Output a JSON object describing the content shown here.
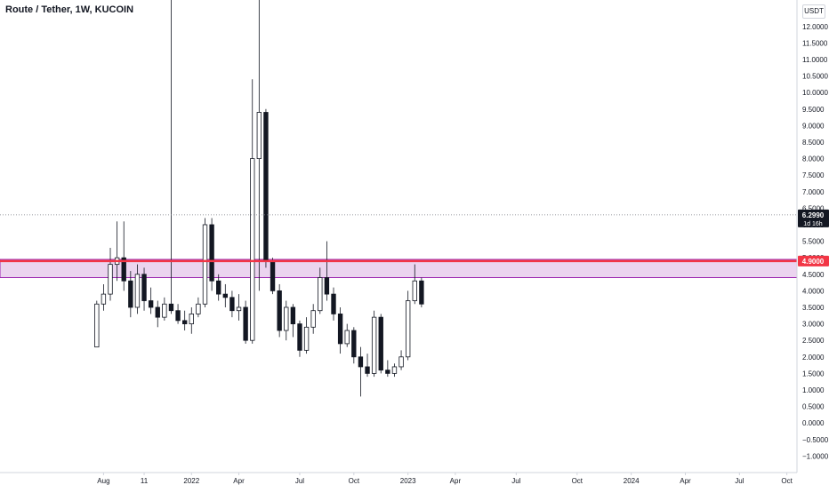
{
  "chart_data": {
    "type": "candlestick",
    "title": "Route / Tether, 1W, KUCOIN",
    "currency": "USDT",
    "yticks": [
      -1,
      -0.5,
      0,
      0.5,
      1,
      1.5,
      2,
      2.5,
      3,
      3.5,
      4,
      4.5,
      5,
      5.5,
      6,
      6.5,
      7,
      7.5,
      8,
      8.5,
      9,
      9.5,
      10,
      10.5,
      11,
      11.5,
      12
    ],
    "ytick_labels": [
      "−1.0000",
      "−0.5000",
      "0.0000",
      "0.5000",
      "1.0000",
      "1.5000",
      "2.0000",
      "2.5000",
      "3.0000",
      "3.5000",
      "4.0000",
      "4.5000",
      "5.0000",
      "5.5000",
      "6.0000",
      "6.5000",
      "7.0000",
      "7.5000",
      "8.0000",
      "8.5000",
      "9.0000",
      "9.5000",
      "10.0000",
      "10.5000",
      "11.0000",
      "11.5000",
      "12.0000"
    ],
    "ylim": [
      -1.5,
      12.8
    ],
    "xtick_labels": [
      {
        "label": "Aug",
        "index": 1
      },
      {
        "label": "11",
        "index": 7
      },
      {
        "label": "2022",
        "index": 14
      },
      {
        "label": "Apr",
        "index": 21
      },
      {
        "label": "Jul",
        "index": 30
      },
      {
        "label": "Oct",
        "index": 38
      },
      {
        "label": "2023",
        "index": 46
      },
      {
        "label": "Apr",
        "index": 53
      },
      {
        "label": "Jul",
        "index": 62
      },
      {
        "label": "Oct",
        "index": 71
      },
      {
        "label": "2024",
        "index": 79
      },
      {
        "label": "Apr",
        "index": 87
      },
      {
        "label": "Jul",
        "index": 95
      },
      {
        "label": "Oct",
        "index": 102
      }
    ],
    "x_slots": 104,
    "candles": [
      {
        "o": 2.3,
        "h": 3.7,
        "l": 2.3,
        "c": 3.6
      },
      {
        "o": 3.6,
        "h": 4.2,
        "l": 3.4,
        "c": 3.9
      },
      {
        "o": 3.9,
        "h": 5.3,
        "l": 3.7,
        "c": 4.8
      },
      {
        "o": 4.8,
        "h": 6.1,
        "l": 4.3,
        "c": 5.0
      },
      {
        "o": 5.0,
        "h": 6.1,
        "l": 4.0,
        "c": 4.3
      },
      {
        "o": 4.3,
        "h": 4.6,
        "l": 3.2,
        "c": 3.5
      },
      {
        "o": 3.5,
        "h": 4.8,
        "l": 3.3,
        "c": 4.5
      },
      {
        "o": 4.5,
        "h": 4.7,
        "l": 3.4,
        "c": 3.7
      },
      {
        "o": 3.7,
        "h": 4.1,
        "l": 3.3,
        "c": 3.5
      },
      {
        "o": 3.5,
        "h": 3.7,
        "l": 2.9,
        "c": 3.2
      },
      {
        "o": 3.2,
        "h": 3.8,
        "l": 3.1,
        "c": 3.6
      },
      {
        "o": 3.6,
        "h": 12.8,
        "l": 3.3,
        "c": 3.4
      },
      {
        "o": 3.4,
        "h": 3.6,
        "l": 3.0,
        "c": 3.1
      },
      {
        "o": 3.1,
        "h": 3.4,
        "l": 2.8,
        "c": 3.0
      },
      {
        "o": 3.0,
        "h": 3.5,
        "l": 2.7,
        "c": 3.3
      },
      {
        "o": 3.3,
        "h": 3.8,
        "l": 3.2,
        "c": 3.6
      },
      {
        "o": 3.6,
        "h": 6.2,
        "l": 3.5,
        "c": 6.0
      },
      {
        "o": 6.0,
        "h": 6.2,
        "l": 4.0,
        "c": 4.3
      },
      {
        "o": 4.3,
        "h": 4.5,
        "l": 3.7,
        "c": 3.9
      },
      {
        "o": 3.9,
        "h": 4.2,
        "l": 3.5,
        "c": 3.8
      },
      {
        "o": 3.8,
        "h": 4.0,
        "l": 3.2,
        "c": 3.4
      },
      {
        "o": 3.4,
        "h": 3.9,
        "l": 3.1,
        "c": 3.5
      },
      {
        "o": 3.5,
        "h": 3.7,
        "l": 2.4,
        "c": 2.5
      },
      {
        "o": 2.5,
        "h": 10.4,
        "l": 2.4,
        "c": 8.0
      },
      {
        "o": 8.0,
        "h": 12.8,
        "l": 4.0,
        "c": 9.4
      },
      {
        "o": 9.4,
        "h": 9.5,
        "l": 4.7,
        "c": 4.9
      },
      {
        "o": 4.9,
        "h": 5.0,
        "l": 3.9,
        "c": 4.0
      },
      {
        "o": 4.0,
        "h": 4.2,
        "l": 2.6,
        "c": 2.8
      },
      {
        "o": 2.8,
        "h": 3.7,
        "l": 2.5,
        "c": 3.5
      },
      {
        "o": 3.5,
        "h": 3.6,
        "l": 2.6,
        "c": 3.0
      },
      {
        "o": 3.0,
        "h": 3.1,
        "l": 2.0,
        "c": 2.2
      },
      {
        "o": 2.2,
        "h": 3.2,
        "l": 2.1,
        "c": 2.9
      },
      {
        "o": 2.9,
        "h": 3.6,
        "l": 2.7,
        "c": 3.4
      },
      {
        "o": 3.4,
        "h": 4.7,
        "l": 3.3,
        "c": 4.4
      },
      {
        "o": 4.4,
        "h": 5.5,
        "l": 3.7,
        "c": 3.9
      },
      {
        "o": 3.9,
        "h": 4.1,
        "l": 3.1,
        "c": 3.3
      },
      {
        "o": 3.3,
        "h": 3.5,
        "l": 2.1,
        "c": 2.4
      },
      {
        "o": 2.4,
        "h": 3.0,
        "l": 2.3,
        "c": 2.8
      },
      {
        "o": 2.8,
        "h": 2.9,
        "l": 1.8,
        "c": 2.0
      },
      {
        "o": 2.0,
        "h": 2.3,
        "l": 0.8,
        "c": 1.7
      },
      {
        "o": 1.7,
        "h": 2.1,
        "l": 1.4,
        "c": 1.5
      },
      {
        "o": 1.5,
        "h": 3.4,
        "l": 1.4,
        "c": 3.2
      },
      {
        "o": 3.2,
        "h": 3.3,
        "l": 1.5,
        "c": 1.6
      },
      {
        "o": 1.6,
        "h": 1.9,
        "l": 1.4,
        "c": 1.5
      },
      {
        "o": 1.5,
        "h": 1.8,
        "l": 1.4,
        "c": 1.7
      },
      {
        "o": 1.7,
        "h": 2.2,
        "l": 1.6,
        "c": 2.0
      },
      {
        "o": 2.0,
        "h": 4.0,
        "l": 1.9,
        "c": 3.7
      },
      {
        "o": 3.7,
        "h": 4.8,
        "l": 3.6,
        "c": 4.3
      },
      {
        "o": 4.3,
        "h": 4.4,
        "l": 3.5,
        "c": 3.6
      }
    ],
    "support_line": {
      "value": 4.9,
      "label": "4.9000",
      "color": "#f23645"
    },
    "zone": {
      "top": 4.95,
      "bottom": 4.4,
      "color": "#9c27b0"
    },
    "last_price": {
      "value": 6.299,
      "label": "6.2990",
      "countdown": "1d 16h"
    }
  }
}
